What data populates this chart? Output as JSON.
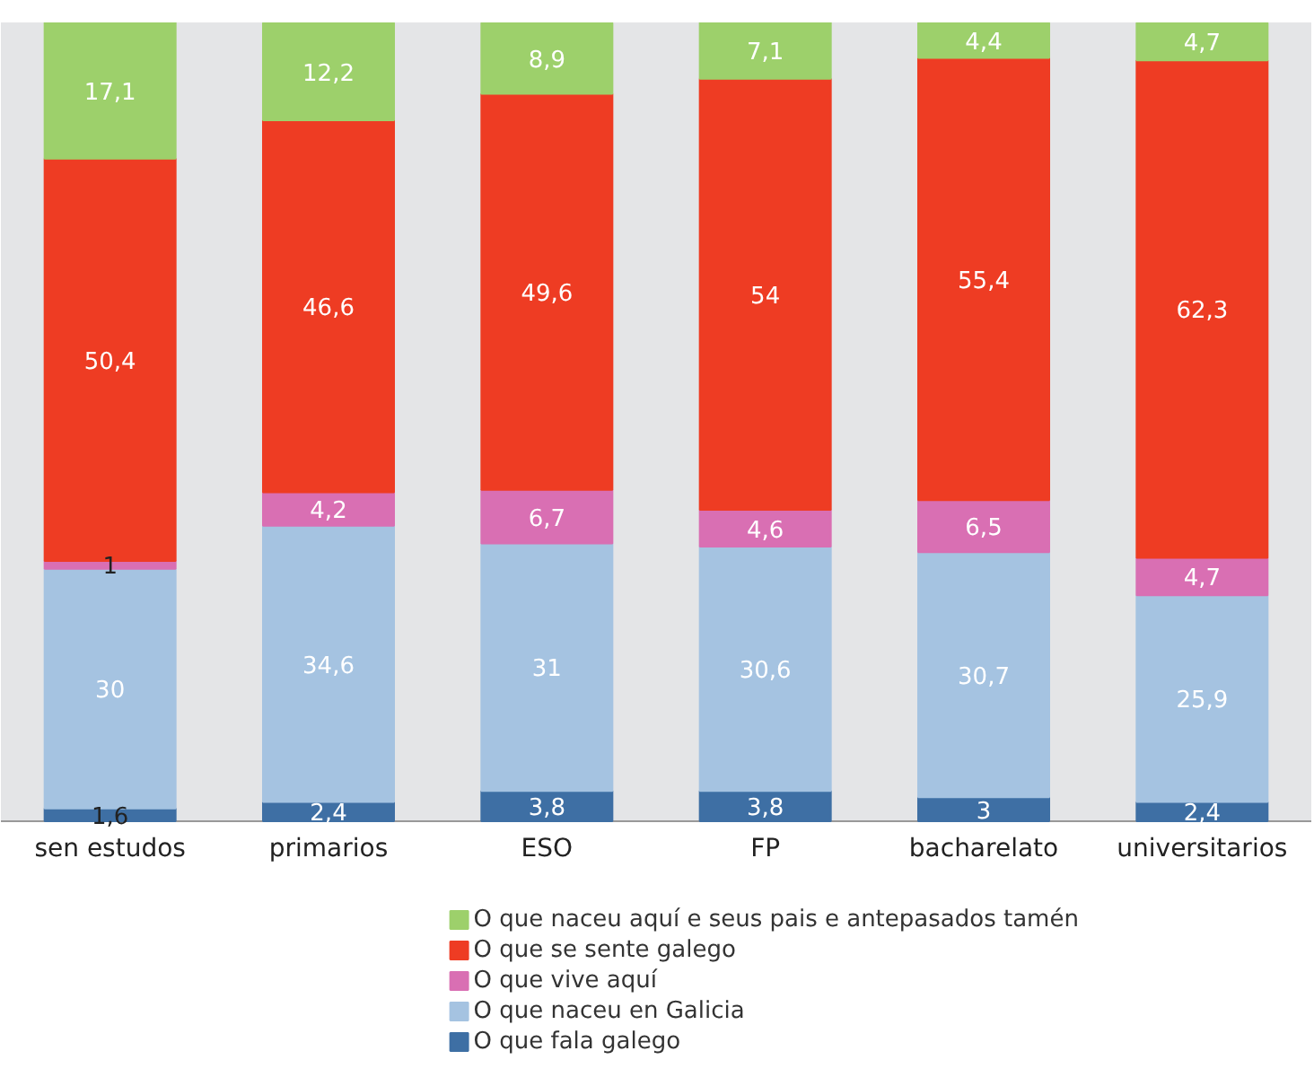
{
  "chart_data": {
    "type": "bar",
    "stacked": true,
    "categories": [
      "sen estudos",
      "primarios",
      "ESO",
      "FP",
      "bacharelato",
      "universitarios"
    ],
    "series": [
      {
        "name": "O que fala galego",
        "color": "#3e6fa4",
        "values": [
          1.6,
          2.4,
          3.8,
          3.8,
          3,
          2.4
        ],
        "value_labels": [
          "1,6",
          "2,4",
          "3,8",
          "3,8",
          "3",
          "2,4"
        ]
      },
      {
        "name": "O que naceu en Galicia",
        "color": "#a5c3e1",
        "values": [
          30,
          34.6,
          31,
          30.6,
          30.7,
          25.9
        ],
        "value_labels": [
          "30",
          "34,6",
          "31",
          "30,6",
          "30,7",
          "25,9"
        ]
      },
      {
        "name": "O que vive aquí",
        "color": "#d96fb3",
        "values": [
          1,
          4.2,
          6.7,
          4.6,
          6.5,
          4.7
        ],
        "value_labels": [
          "1",
          "4,2",
          "6,7",
          "4,6",
          "6,5",
          "4,7"
        ]
      },
      {
        "name": "O que se sente galego",
        "color": "#ee3c23",
        "values": [
          50.4,
          46.6,
          49.6,
          54,
          55.4,
          62.3
        ],
        "value_labels": [
          "50,4",
          "46,6",
          "49,6",
          "54",
          "55,4",
          "62,3"
        ]
      },
      {
        "name": "O que naceu aquí e seus pais e antepasados tamén",
        "color": "#9dd06b",
        "values": [
          17.1,
          12.2,
          8.9,
          7.1,
          4.4,
          4.7
        ],
        "value_labels": [
          "17,1",
          "12,2",
          "8,9",
          "7,1",
          "4,4",
          "4,7"
        ]
      }
    ],
    "legend": "bottom"
  }
}
